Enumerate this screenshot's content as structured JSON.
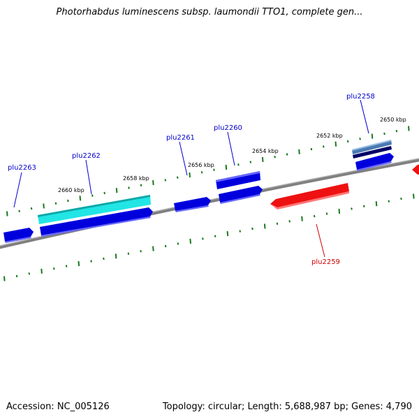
{
  "title": "Photorhabdus luminescens subsp. laumondii TTO1, complete gen...",
  "footer": {
    "accession": "Accession: NC_005126",
    "summary": "Topology: circular; Length: 5,688,987 bp; Genes: 4,790"
  },
  "colors": {
    "backbone": "#808080",
    "tick": "#1a7a1a",
    "forward_gene": "#0000dd",
    "reverse_gene": "#ee1111",
    "highlight_gene": "#22e5e5",
    "steel_gene": "#4a7ab0",
    "navy_gene": "#000066",
    "forward_label": "#0000cc",
    "reverse_label": "#cc0000"
  },
  "scale": {
    "ticks": [
      {
        "label": "2650 kbp"
      },
      {
        "label": "2652 kbp"
      },
      {
        "label": "2654 kbp"
      },
      {
        "label": "2656 kbp"
      },
      {
        "label": "2658 kbp"
      },
      {
        "label": "2660 kbp"
      }
    ]
  },
  "genes": [
    {
      "name": "plu2263",
      "strand": "forward"
    },
    {
      "name": "plu2262",
      "strand": "forward"
    },
    {
      "name": "plu2261",
      "strand": "forward"
    },
    {
      "name": "plu2260",
      "strand": "forward"
    },
    {
      "name": "plu2259",
      "strand": "reverse"
    },
    {
      "name": "plu2258",
      "strand": "forward"
    }
  ]
}
